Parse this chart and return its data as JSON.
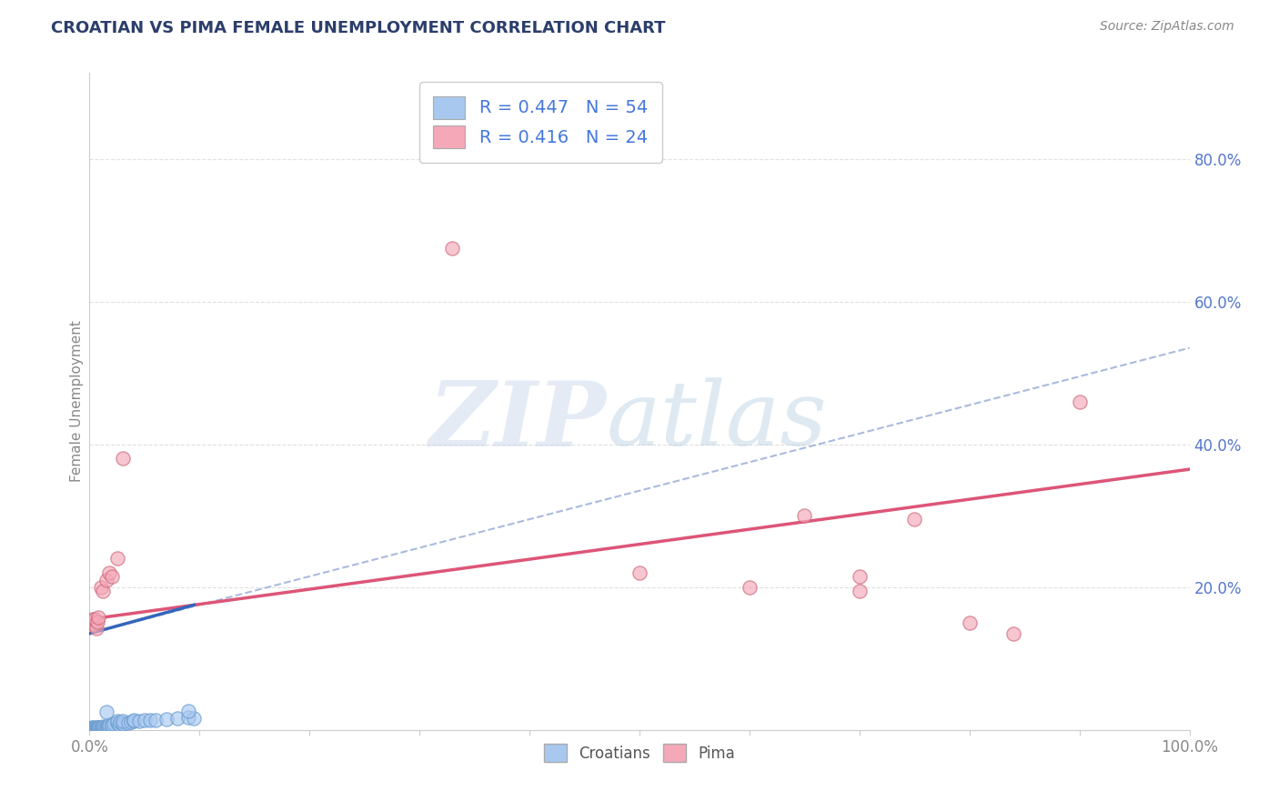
{
  "title": "CROATIAN VS PIMA FEMALE UNEMPLOYMENT CORRELATION CHART",
  "source_text": "Source: ZipAtlas.com",
  "ylabel": "Female Unemployment",
  "xlim": [
    0,
    1.0
  ],
  "ylim": [
    0,
    0.92
  ],
  "croatian_R": 0.447,
  "croatian_N": 54,
  "pima_R": 0.416,
  "pima_N": 24,
  "croatian_color": "#a8c8f0",
  "croatian_edge": "#6699cc",
  "pima_color": "#f4a8b8",
  "pima_edge": "#cc6677",
  "croatian_solid_line": {
    "x0": 0.0,
    "y0": 0.135,
    "x1": 0.095,
    "y1": 0.175
  },
  "croatian_dashed_line": {
    "x0": 0.0,
    "y0": 0.135,
    "x1": 1.0,
    "y1": 0.535
  },
  "pima_line": {
    "x0": 0.0,
    "y0": 0.155,
    "x1": 1.0,
    "y1": 0.365
  },
  "croatian_solid_color": "#3366bb",
  "croatian_dash_color": "#aabbdd",
  "pima_line_color": "#dd5577",
  "croatian_points": [
    [
      0.001,
      0.001
    ],
    [
      0.002,
      0.001
    ],
    [
      0.001,
      0.002
    ],
    [
      0.002,
      0.003
    ],
    [
      0.003,
      0.001
    ],
    [
      0.003,
      0.002
    ],
    [
      0.004,
      0.001
    ],
    [
      0.004,
      0.003
    ],
    [
      0.005,
      0.002
    ],
    [
      0.005,
      0.001
    ],
    [
      0.006,
      0.002
    ],
    [
      0.006,
      0.003
    ],
    [
      0.007,
      0.001
    ],
    [
      0.007,
      0.002
    ],
    [
      0.008,
      0.003
    ],
    [
      0.008,
      0.002
    ],
    [
      0.009,
      0.001
    ],
    [
      0.009,
      0.003
    ],
    [
      0.01,
      0.002
    ],
    [
      0.01,
      0.004
    ],
    [
      0.011,
      0.002
    ],
    [
      0.012,
      0.003
    ],
    [
      0.012,
      0.005
    ],
    [
      0.013,
      0.002
    ],
    [
      0.014,
      0.003
    ],
    [
      0.015,
      0.004
    ],
    [
      0.015,
      0.001
    ],
    [
      0.016,
      0.003
    ],
    [
      0.017,
      0.002
    ],
    [
      0.018,
      0.004
    ],
    [
      0.018,
      0.008
    ],
    [
      0.02,
      0.005
    ],
    [
      0.02,
      0.008
    ],
    [
      0.022,
      0.009
    ],
    [
      0.025,
      0.01
    ],
    [
      0.025,
      0.013
    ],
    [
      0.027,
      0.008
    ],
    [
      0.028,
      0.011
    ],
    [
      0.03,
      0.009
    ],
    [
      0.03,
      0.012
    ],
    [
      0.035,
      0.01
    ],
    [
      0.038,
      0.011
    ],
    [
      0.04,
      0.012
    ],
    [
      0.04,
      0.014
    ],
    [
      0.045,
      0.013
    ],
    [
      0.05,
      0.014
    ],
    [
      0.055,
      0.014
    ],
    [
      0.06,
      0.014
    ],
    [
      0.07,
      0.015
    ],
    [
      0.08,
      0.016
    ],
    [
      0.09,
      0.017
    ],
    [
      0.095,
      0.016
    ],
    [
      0.015,
      0.025
    ],
    [
      0.09,
      0.026
    ]
  ],
  "pima_points": [
    [
      0.002,
      0.15
    ],
    [
      0.003,
      0.155
    ],
    [
      0.004,
      0.148
    ],
    [
      0.005,
      0.155
    ],
    [
      0.006,
      0.142
    ],
    [
      0.007,
      0.151
    ],
    [
      0.008,
      0.158
    ],
    [
      0.01,
      0.2
    ],
    [
      0.012,
      0.195
    ],
    [
      0.015,
      0.21
    ],
    [
      0.018,
      0.22
    ],
    [
      0.02,
      0.215
    ],
    [
      0.025,
      0.24
    ],
    [
      0.03,
      0.38
    ],
    [
      0.33,
      0.675
    ],
    [
      0.5,
      0.22
    ],
    [
      0.6,
      0.2
    ],
    [
      0.65,
      0.3
    ],
    [
      0.7,
      0.215
    ],
    [
      0.7,
      0.195
    ],
    [
      0.75,
      0.295
    ],
    [
      0.8,
      0.15
    ],
    [
      0.84,
      0.135
    ],
    [
      0.9,
      0.46
    ]
  ],
  "title_color": "#2c3e6b",
  "axis_label_color": "#888888",
  "tick_color_right": "#5577cc",
  "tick_color_bottom": "#888888",
  "grid_color": "#dddddd",
  "background_color": "#ffffff",
  "legend_text_color": "#4477dd"
}
